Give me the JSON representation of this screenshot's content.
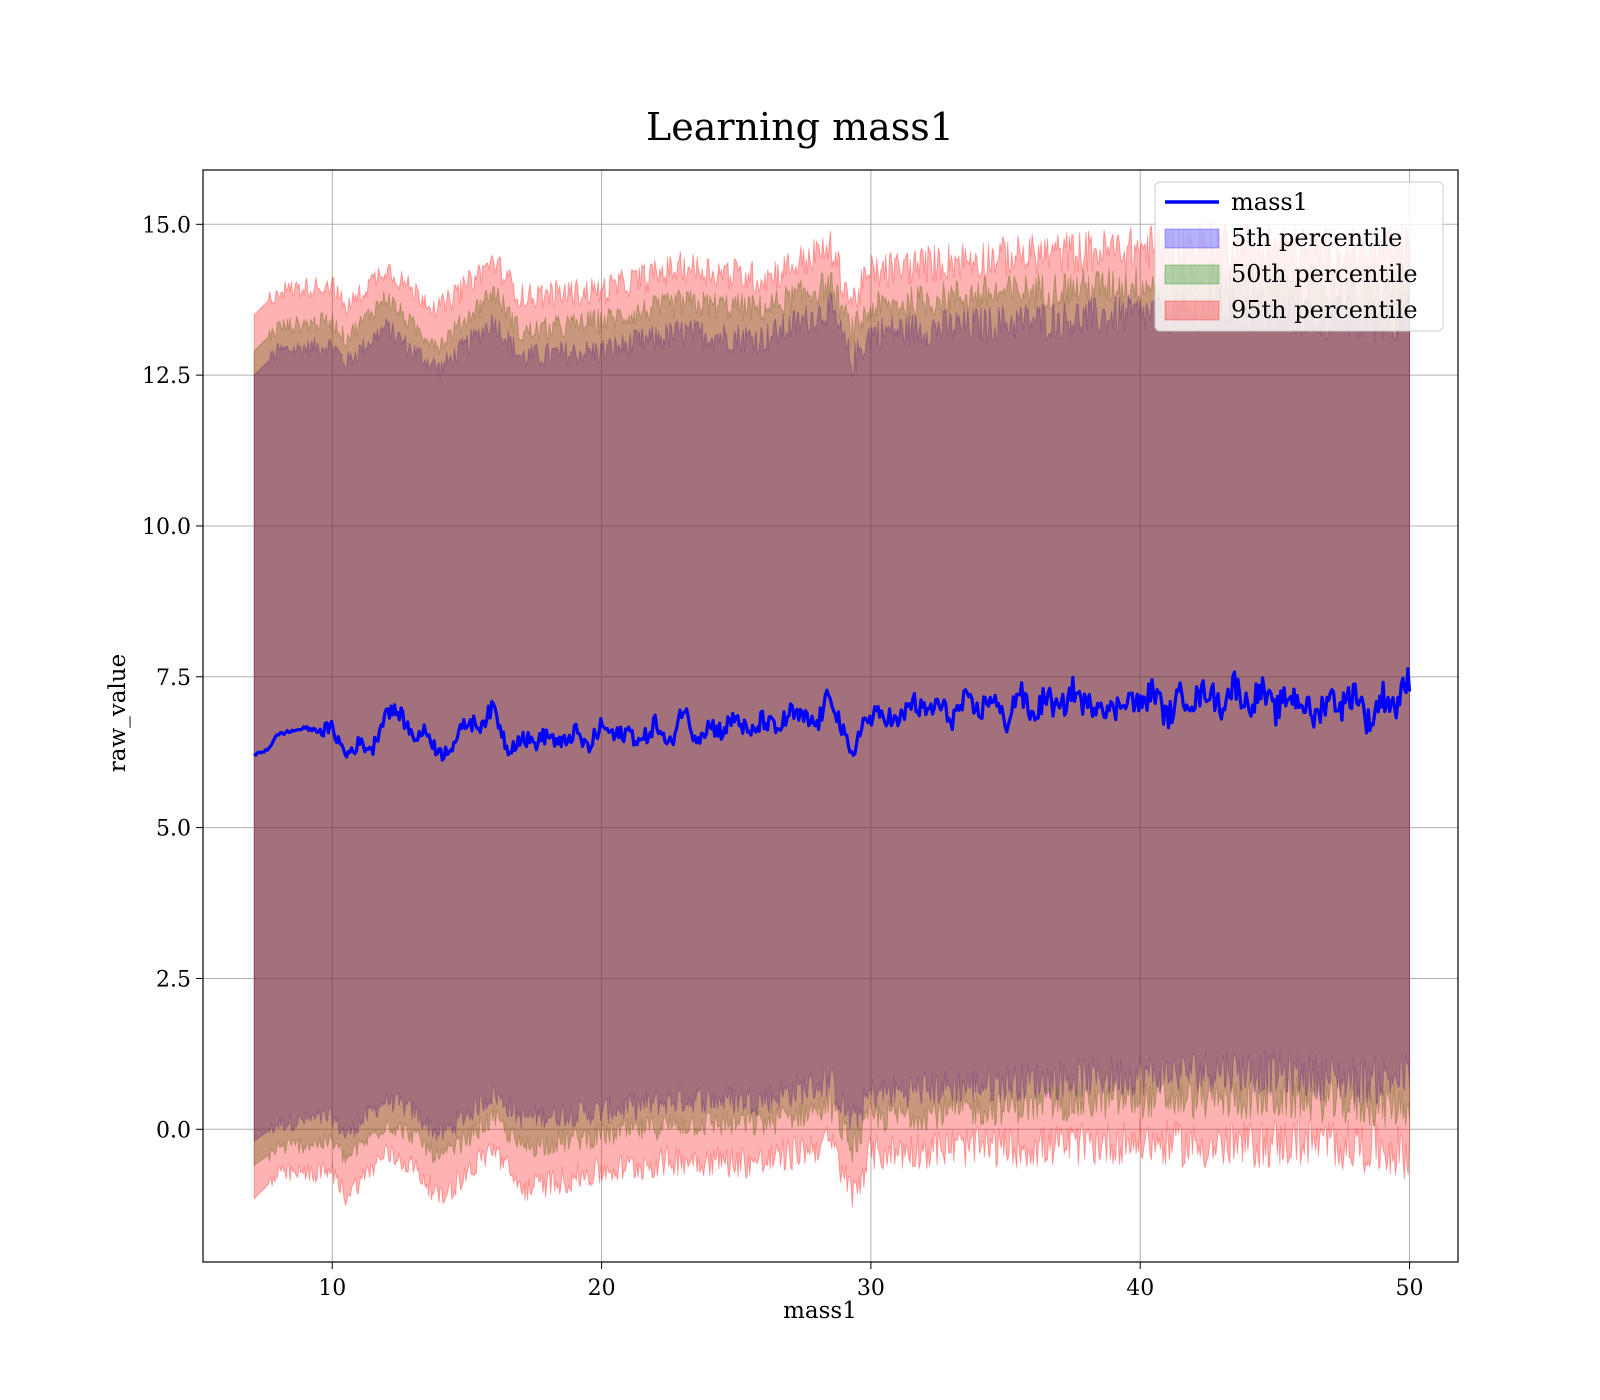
{
  "chart_data": {
    "type": "line",
    "title": "Learning mass1",
    "xlabel": "mass1",
    "ylabel": "raw_value",
    "xlim": [
      5.2,
      51.8
    ],
    "ylim": [
      -2.2,
      15.9
    ],
    "xticks": [
      10,
      20,
      30,
      40,
      50
    ],
    "yticks": [
      0.0,
      2.5,
      5.0,
      7.5,
      10.0,
      12.5,
      15.0
    ],
    "xtick_labels": [
      "10",
      "20",
      "30",
      "40",
      "50"
    ],
    "ytick_labels": [
      "0.0",
      "2.5",
      "5.0",
      "7.5",
      "10.0",
      "12.5",
      "15.0"
    ],
    "grid": true,
    "legend_position": "top-right",
    "line": {
      "name": "mass1",
      "color": "#0000ff",
      "x": [
        7.1,
        7.6,
        8.0,
        8.5,
        9.0,
        9.5,
        10.0,
        10.5,
        11.0,
        11.5,
        12.0,
        12.5,
        13.0,
        13.5,
        14.0,
        14.5,
        15.0,
        15.5,
        16.0,
        16.5,
        17.0,
        17.5,
        18.0,
        18.5,
        19.0,
        19.5,
        20.0,
        20.5,
        21.0,
        21.5,
        22.0,
        22.5,
        23.0,
        23.5,
        24.0,
        24.5,
        25.0,
        25.5,
        26.0,
        26.5,
        27.0,
        27.5,
        28.0,
        28.5,
        29.0,
        29.3,
        29.6,
        30.0,
        30.5,
        31.0,
        31.5,
        32.0,
        32.5,
        33.0,
        33.5,
        34.0,
        34.5,
        35.0,
        35.5,
        36.0,
        36.5,
        37.0,
        37.5,
        38.0,
        38.5,
        39.0,
        39.5,
        40.0,
        40.5,
        41.0,
        41.5,
        42.0,
        42.5,
        43.0,
        43.5,
        44.0,
        44.5,
        45.0,
        45.5,
        46.0,
        46.5,
        47.0,
        47.5,
        48.0,
        48.5,
        49.0,
        49.5,
        50.0
      ],
      "y": [
        6.2,
        6.3,
        6.55,
        6.6,
        6.65,
        6.6,
        6.65,
        6.2,
        6.4,
        6.3,
        6.95,
        6.9,
        6.5,
        6.6,
        6.2,
        6.4,
        6.75,
        6.7,
        7.0,
        6.3,
        6.5,
        6.4,
        6.55,
        6.35,
        6.6,
        6.3,
        6.7,
        6.5,
        6.6,
        6.4,
        6.75,
        6.3,
        7.0,
        6.5,
        6.7,
        6.6,
        6.85,
        6.5,
        6.8,
        6.6,
        6.9,
        6.8,
        6.7,
        7.25,
        6.5,
        6.1,
        6.7,
        6.8,
        6.9,
        6.7,
        7.1,
        6.9,
        7.05,
        6.8,
        7.1,
        6.9,
        7.2,
        6.7,
        7.3,
        6.8,
        7.2,
        6.9,
        7.3,
        7.0,
        7.1,
        6.9,
        7.2,
        7.0,
        7.3,
        6.8,
        7.2,
        7.1,
        7.3,
        7.0,
        7.4,
        7.0,
        7.3,
        6.9,
        7.2,
        7.1,
        6.8,
        7.2,
        7.0,
        7.3,
        6.7,
        7.2,
        7.0,
        7.5
      ],
      "noise_amplitude": 0.18
    },
    "bands": [
      {
        "name": "5th percentile",
        "fill_color": "#0000ff",
        "edge_color": "#0000ff",
        "x": [
          7.1,
          8.0,
          10.0,
          10.5,
          12.0,
          13.0,
          14.0,
          16.0,
          17.0,
          20.0,
          23.0,
          26.0,
          28.5,
          29.3,
          30.0,
          33.0,
          36.0,
          40.0,
          43.0,
          46.0,
          48.5,
          50.0
        ],
        "upper": [
          12.5,
          12.9,
          13.0,
          12.7,
          13.3,
          12.9,
          12.6,
          13.4,
          12.8,
          12.9,
          13.2,
          13.1,
          13.6,
          12.7,
          13.2,
          13.3,
          13.4,
          13.5,
          13.6,
          13.5,
          13.4,
          13.5
        ],
        "lower": [
          -0.2,
          0.1,
          0.2,
          -0.1,
          0.5,
          0.3,
          -0.1,
          0.6,
          0.2,
          0.3,
          0.5,
          0.5,
          0.8,
          0.1,
          0.6,
          0.7,
          0.8,
          0.9,
          1.0,
          0.9,
          0.8,
          0.9
        ],
        "noise_amplitude": 0.3
      },
      {
        "name": "50th percentile",
        "fill_color": "#008000",
        "edge_color": "#008000",
        "x": [
          7.1,
          8.0,
          10.0,
          10.5,
          12.0,
          13.0,
          14.0,
          16.0,
          17.0,
          20.0,
          23.0,
          26.0,
          28.5,
          29.3,
          30.0,
          33.0,
          36.0,
          40.0,
          43.0,
          46.0,
          48.5,
          50.0
        ],
        "upper": [
          12.9,
          13.3,
          13.4,
          13.1,
          13.8,
          13.3,
          13.0,
          13.9,
          13.2,
          13.4,
          13.7,
          13.6,
          14.0,
          13.2,
          13.6,
          13.8,
          13.9,
          14.0,
          14.1,
          14.0,
          13.9,
          14.0
        ],
        "lower": [
          -0.6,
          -0.3,
          -0.2,
          -0.5,
          0.1,
          -0.1,
          -0.5,
          0.2,
          -0.3,
          -0.1,
          0.1,
          0.1,
          0.4,
          -0.3,
          0.2,
          0.3,
          0.4,
          0.5,
          0.5,
          0.5,
          0.4,
          0.4
        ],
        "noise_amplitude": 0.28
      },
      {
        "name": "95th percentile",
        "fill_color": "#ff0000",
        "edge_color": "#ff0000",
        "x": [
          7.1,
          8.0,
          10.0,
          10.5,
          12.0,
          13.0,
          14.0,
          16.0,
          17.0,
          20.0,
          23.0,
          26.0,
          28.5,
          29.3,
          30.0,
          33.0,
          36.0,
          40.0,
          43.0,
          46.0,
          48.5,
          50.0
        ],
        "upper": [
          13.5,
          13.9,
          14.0,
          13.6,
          14.3,
          13.9,
          13.6,
          14.4,
          13.8,
          13.9,
          14.3,
          14.1,
          14.6,
          13.7,
          14.2,
          14.4,
          14.5,
          14.6,
          14.7,
          14.6,
          14.5,
          14.6
        ],
        "lower": [
          -1.15,
          -0.75,
          -0.7,
          -1.1,
          -0.4,
          -0.6,
          -1.15,
          -0.3,
          -1.0,
          -0.7,
          -0.5,
          -0.55,
          -0.2,
          -1.1,
          -0.4,
          -0.3,
          -0.3,
          -0.2,
          -0.3,
          -0.2,
          -0.3,
          -0.4
        ],
        "noise_amplitude": 0.32
      }
    ],
    "legend": [
      {
        "label": "mass1",
        "kind": "line",
        "color": "#0000ff"
      },
      {
        "label": "5th percentile",
        "kind": "patch",
        "color": "#0000ff"
      },
      {
        "label": "50th percentile",
        "kind": "patch",
        "color": "#008000"
      },
      {
        "label": "95th percentile",
        "kind": "patch",
        "color": "#ff0000"
      }
    ]
  }
}
